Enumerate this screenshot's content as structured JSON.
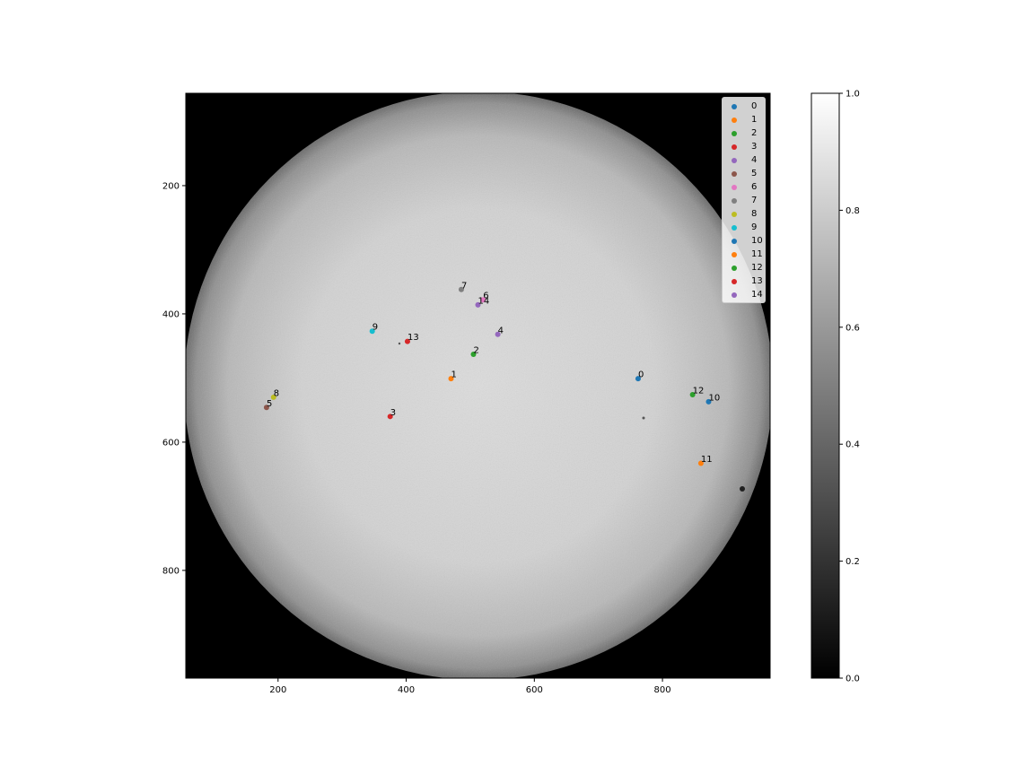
{
  "chart_data": {
    "type": "scatter",
    "title": "",
    "xlabel": "",
    "ylabel": "",
    "xlim": [
      56,
      968
    ],
    "ylim": [
      968,
      56
    ],
    "x_ticks": [
      200,
      400,
      600,
      800
    ],
    "y_ticks": [
      200,
      400,
      600,
      800
    ],
    "background": "solar full-disk grayscale image",
    "points": [
      {
        "label": "0",
        "x": 762,
        "y": 501,
        "color": "#1f77b4"
      },
      {
        "label": "1",
        "x": 470,
        "y": 501,
        "color": "#ff7f0e"
      },
      {
        "label": "2",
        "x": 505,
        "y": 463,
        "color": "#2ca02c"
      },
      {
        "label": "3",
        "x": 375,
        "y": 560,
        "color": "#d62728"
      },
      {
        "label": "4",
        "x": 543,
        "y": 432,
        "color": "#9467bd"
      },
      {
        "label": "5",
        "x": 182,
        "y": 546,
        "color": "#8c564b"
      },
      {
        "label": "6",
        "x": 520,
        "y": 378,
        "color": "#e377c2"
      },
      {
        "label": "7",
        "x": 486,
        "y": 362,
        "color": "#7f7f7f"
      },
      {
        "label": "8",
        "x": 193,
        "y": 530,
        "color": "#bcbd22"
      },
      {
        "label": "9",
        "x": 347,
        "y": 427,
        "color": "#17becf"
      },
      {
        "label": "10",
        "x": 872,
        "y": 537,
        "color": "#1f77b4"
      },
      {
        "label": "11",
        "x": 860,
        "y": 633,
        "color": "#ff7f0e"
      },
      {
        "label": "12",
        "x": 847,
        "y": 526,
        "color": "#2ca02c"
      },
      {
        "label": "13",
        "x": 402,
        "y": 443,
        "color": "#d62728"
      },
      {
        "label": "14",
        "x": 512,
        "y": 386,
        "color": "#9467bd"
      }
    ],
    "legend_position": "upper right",
    "colorbar": {
      "range": [
        0.0,
        1.0
      ],
      "ticks": [
        "0.0",
        "0.2",
        "0.4",
        "0.6",
        "0.8",
        "1.0"
      ],
      "colormap": "gray"
    }
  }
}
